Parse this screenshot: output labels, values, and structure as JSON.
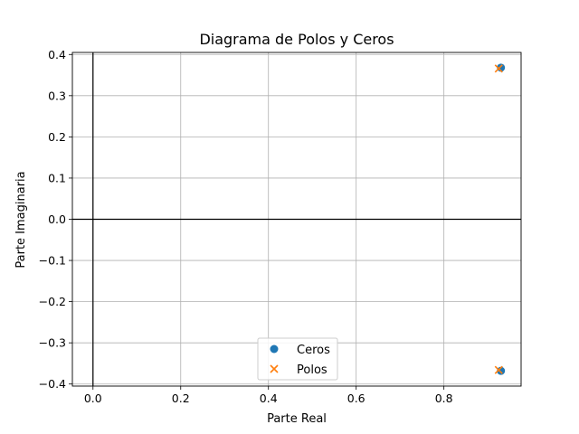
{
  "chart_data": {
    "type": "scatter",
    "title": "Diagrama de Polos y Ceros",
    "xlabel": "Parte Real",
    "ylabel": "Parte Imaginaria",
    "xlim": [
      -0.047,
      0.976
    ],
    "ylim": [
      -0.405,
      0.405
    ],
    "xticks": [
      0.0,
      0.2,
      0.4,
      0.6,
      0.8
    ],
    "xtick_labels": [
      "0.0",
      "0.2",
      "0.4",
      "0.6",
      "0.8"
    ],
    "yticks": [
      -0.4,
      -0.3,
      -0.2,
      -0.1,
      0.0,
      0.1,
      0.2,
      0.3,
      0.4
    ],
    "ytick_labels": [
      "−0.4",
      "−0.3",
      "−0.2",
      "−0.1",
      "0.0",
      "0.1",
      "0.2",
      "0.3",
      "0.4"
    ],
    "grid": true,
    "reference_lines": {
      "x": 0,
      "y": 0
    },
    "legend_position": "lower center",
    "series": [
      {
        "name": "Ceros",
        "marker": "circle",
        "color": "#1f77b4",
        "points": [
          {
            "x": 0.93,
            "y": 0.368
          },
          {
            "x": 0.93,
            "y": -0.368
          }
        ]
      },
      {
        "name": "Polos",
        "marker": "x",
        "color": "#ff7f0e",
        "points": [
          {
            "x": 0.925,
            "y": 0.366
          },
          {
            "x": 0.925,
            "y": -0.366
          }
        ]
      }
    ]
  }
}
